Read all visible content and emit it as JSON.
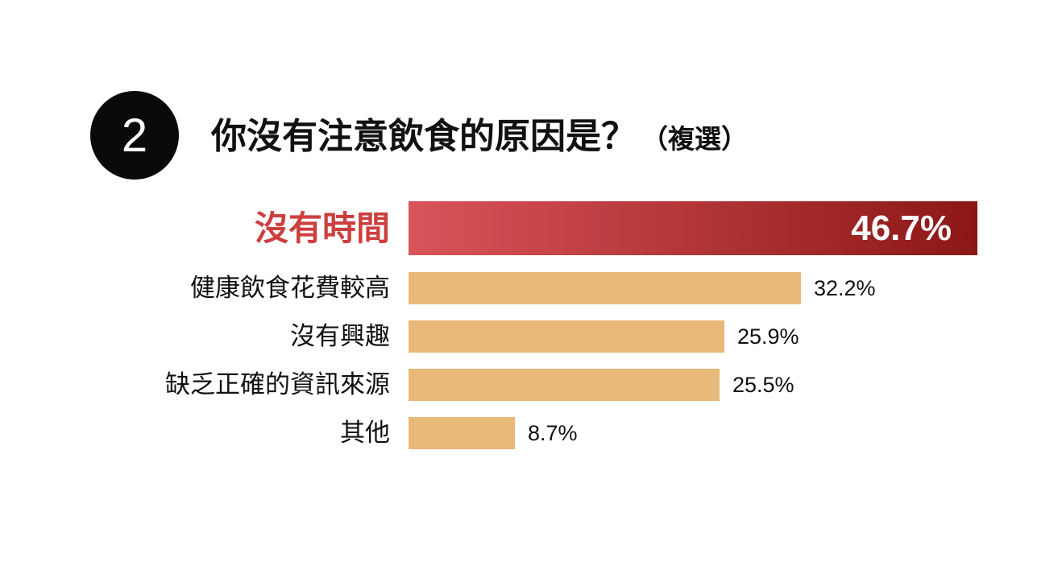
{
  "header": {
    "number": "2",
    "title": "你沒有注意飲食的原因是？",
    "suffix": "（複選）"
  },
  "colors": {
    "highlight_start": "#d9545a",
    "highlight_end": "#8b1716",
    "highlight_label": "#cd3f3f",
    "bar": "#e8b978",
    "text": "#111111"
  },
  "chart_data": {
    "type": "bar",
    "orientation": "horizontal",
    "categories": [
      "沒有時間",
      "健康飲食花費較高",
      "沒有興趣",
      "缺乏正確的資訊來源",
      "其他"
    ],
    "values": [
      46.7,
      32.2,
      25.9,
      25.5,
      8.7
    ],
    "value_labels": [
      "46.7%",
      "32.2%",
      "25.9%",
      "25.5%",
      "8.7%"
    ],
    "highlight_index": 0,
    "xlim": [
      0,
      46.7
    ],
    "grid": false,
    "legend": "none"
  }
}
